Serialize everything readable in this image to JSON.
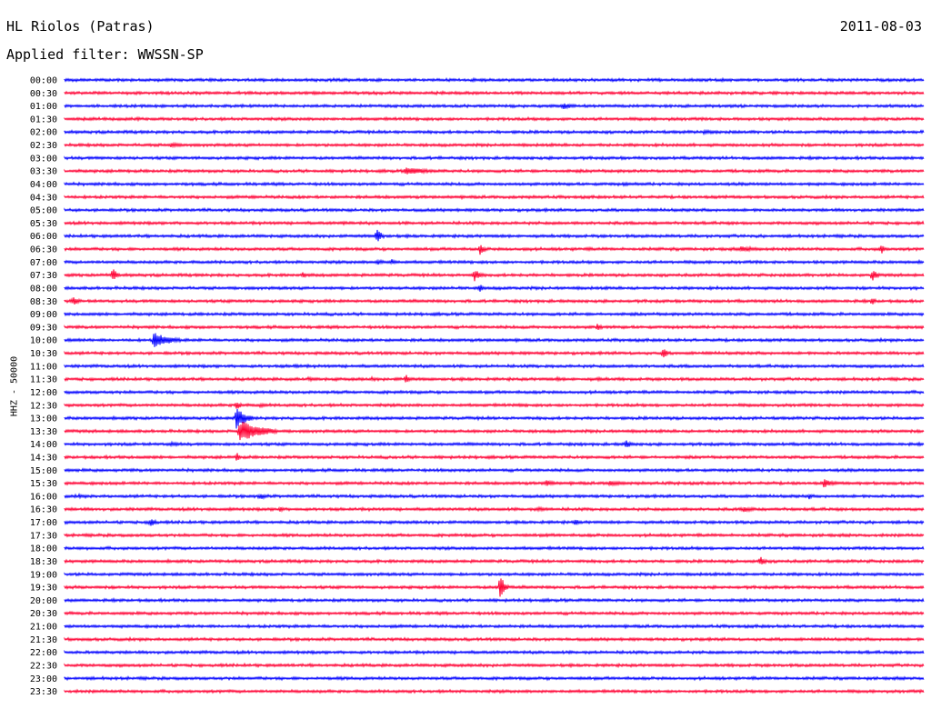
{
  "header": {
    "station": "HL Riolos (Patras)",
    "date": "2011-08-03",
    "filter": "Applied filter: WWSSN-SP"
  },
  "channel_label": "HHZ - 50000",
  "colors": {
    "even_trace": "#0000ff",
    "odd_trace": "#ff0033",
    "background": "#ffffff"
  },
  "chart_data": {
    "type": "line",
    "title": "HL Riolos (Patras)",
    "subtitle": "Applied filter: WWSSN-SP",
    "date": "2011-08-03",
    "ylabel": "HHZ - 50000",
    "rows": [
      "00:00",
      "00:30",
      "01:00",
      "01:30",
      "02:00",
      "02:30",
      "03:00",
      "03:30",
      "04:00",
      "04:30",
      "05:00",
      "05:30",
      "06:00",
      "06:30",
      "07:00",
      "07:30",
      "08:00",
      "08:30",
      "09:00",
      "09:30",
      "10:00",
      "10:30",
      "11:00",
      "11:30",
      "12:00",
      "12:30",
      "13:00",
      "13:30",
      "14:00",
      "14:30",
      "15:00",
      "15:30",
      "16:00",
      "16:30",
      "17:00",
      "17:30",
      "18:00",
      "18:30",
      "19:00",
      "19:30",
      "20:00",
      "20:30",
      "21:00",
      "21:30",
      "22:00",
      "22:30",
      "23:00",
      "23:30"
    ],
    "row_duration_minutes": 30,
    "grid": false,
    "events": [
      {
        "row": "00:30",
        "minute": 2.4,
        "amp": 0.2,
        "dur": 0.3
      },
      {
        "row": "00:30",
        "minute": 27.5,
        "amp": 0.2,
        "dur": 0.3
      },
      {
        "row": "01:00",
        "minute": 17.4,
        "amp": 0.9,
        "dur": 0.6
      },
      {
        "row": "01:30",
        "minute": 7.6,
        "amp": 0.25,
        "dur": 0.3
      },
      {
        "row": "01:30",
        "minute": 9.4,
        "amp": 0.25,
        "dur": 0.4
      },
      {
        "row": "01:30",
        "minute": 10.2,
        "amp": 0.25,
        "dur": 1.3
      },
      {
        "row": "01:30",
        "minute": 21.2,
        "amp": 0.35,
        "dur": 1.6
      },
      {
        "row": "02:00",
        "minute": 11.5,
        "amp": 0.4,
        "dur": 0.6
      },
      {
        "row": "02:00",
        "minute": 22.3,
        "amp": 0.5,
        "dur": 1.8
      },
      {
        "row": "02:30",
        "minute": 2.8,
        "amp": 0.3,
        "dur": 1.2
      },
      {
        "row": "02:30",
        "minute": 3.7,
        "amp": 0.55,
        "dur": 1.4
      },
      {
        "row": "03:30",
        "minute": 2.2,
        "amp": 0.3,
        "dur": 2.3
      },
      {
        "row": "03:30",
        "minute": 11.9,
        "amp": 1.0,
        "dur": 1.5
      },
      {
        "row": "04:00",
        "minute": 1.5,
        "amp": 0.35,
        "dur": 1.2
      },
      {
        "row": "04:00",
        "minute": 7.3,
        "amp": 0.4,
        "dur": 0.3
      },
      {
        "row": "04:00",
        "minute": 19.5,
        "amp": 0.45,
        "dur": 1.2
      },
      {
        "row": "04:00",
        "minute": 23.6,
        "amp": 0.35,
        "dur": 0.9
      },
      {
        "row": "04:00",
        "minute": 26.0,
        "amp": 0.35,
        "dur": 0.6
      },
      {
        "row": "04:30",
        "minute": 4.3,
        "amp": 0.3,
        "dur": 0.8
      },
      {
        "row": "04:30",
        "minute": 6.6,
        "amp": 0.45,
        "dur": 0.6
      },
      {
        "row": "04:30",
        "minute": 12.5,
        "amp": 0.3,
        "dur": 1.5
      },
      {
        "row": "04:30",
        "minute": 20.8,
        "amp": 0.3,
        "dur": 0.8
      },
      {
        "row": "05:30",
        "minute": 2.2,
        "amp": 0.3,
        "dur": 2.3
      },
      {
        "row": "05:30",
        "minute": 9.7,
        "amp": 0.55,
        "dur": 0.6
      },
      {
        "row": "05:30",
        "minute": 20.6,
        "amp": 0.35,
        "dur": 0.9
      },
      {
        "row": "06:00",
        "minute": 10.9,
        "amp": 2.0,
        "dur": 0.3
      },
      {
        "row": "06:00",
        "minute": 20.1,
        "amp": 0.35,
        "dur": 0.6
      },
      {
        "row": "06:30",
        "minute": 14.5,
        "amp": 1.5,
        "dur": 0.3
      },
      {
        "row": "06:30",
        "minute": 16.0,
        "amp": 0.4,
        "dur": 1.2
      },
      {
        "row": "06:30",
        "minute": 18.2,
        "amp": 0.45,
        "dur": 0.9
      },
      {
        "row": "06:30",
        "minute": 23.6,
        "amp": 0.7,
        "dur": 1.8
      },
      {
        "row": "06:30",
        "minute": 28.5,
        "amp": 1.5,
        "dur": 0.2
      },
      {
        "row": "07:00",
        "minute": 3.3,
        "amp": 0.3,
        "dur": 0.3
      },
      {
        "row": "07:00",
        "minute": 8.1,
        "amp": 0.4,
        "dur": 0.6
      },
      {
        "row": "07:00",
        "minute": 10.9,
        "amp": 0.7,
        "dur": 0.6
      },
      {
        "row": "07:00",
        "minute": 11.4,
        "amp": 0.9,
        "dur": 0.4
      },
      {
        "row": "07:30",
        "minute": 1.7,
        "amp": 2.0,
        "dur": 0.2
      },
      {
        "row": "07:30",
        "minute": 8.3,
        "amp": 0.8,
        "dur": 0.3
      },
      {
        "row": "07:30",
        "minute": 14.3,
        "amp": 1.6,
        "dur": 0.4
      },
      {
        "row": "07:30",
        "minute": 28.2,
        "amp": 1.6,
        "dur": 0.3
      },
      {
        "row": "08:00",
        "minute": 13.1,
        "amp": 0.35,
        "dur": 1.8
      },
      {
        "row": "08:00",
        "minute": 14.5,
        "amp": 1.2,
        "dur": 0.2
      },
      {
        "row": "08:30",
        "minute": 0.3,
        "amp": 1.1,
        "dur": 0.4
      },
      {
        "row": "08:30",
        "minute": 28.2,
        "amp": 1.2,
        "dur": 0.2
      },
      {
        "row": "09:00",
        "minute": 7.2,
        "amp": 0.3,
        "dur": 0.9
      },
      {
        "row": "09:00",
        "minute": 18.0,
        "amp": 0.3,
        "dur": 0.6
      },
      {
        "row": "09:00",
        "minute": 24.1,
        "amp": 0.3,
        "dur": 1.2
      },
      {
        "row": "09:30",
        "minute": 16.5,
        "amp": 0.3,
        "dur": 0.6
      },
      {
        "row": "09:30",
        "minute": 18.6,
        "amp": 1.1,
        "dur": 0.3
      },
      {
        "row": "09:30",
        "minute": 29.5,
        "amp": 0.35,
        "dur": 0.5
      },
      {
        "row": "10:00",
        "minute": 0.1,
        "amp": 0.4,
        "dur": 1.8
      },
      {
        "row": "10:00",
        "minute": 3.1,
        "amp": 2.2,
        "dur": 1.0
      },
      {
        "row": "10:30",
        "minute": 7.7,
        "amp": 0.3,
        "dur": 0.3
      },
      {
        "row": "10:30",
        "minute": 20.9,
        "amp": 1.8,
        "dur": 0.2
      },
      {
        "row": "11:00",
        "minute": 8.0,
        "amp": 0.45,
        "dur": 1.2
      },
      {
        "row": "11:00",
        "minute": 13.3,
        "amp": 0.3,
        "dur": 0.6
      },
      {
        "row": "11:30",
        "minute": 8.5,
        "amp": 0.5,
        "dur": 0.9
      },
      {
        "row": "11:30",
        "minute": 10.7,
        "amp": 0.6,
        "dur": 0.6
      },
      {
        "row": "11:30",
        "minute": 11.6,
        "amp": 0.4,
        "dur": 0.6
      },
      {
        "row": "11:30",
        "minute": 11.9,
        "amp": 1.3,
        "dur": 0.3
      },
      {
        "row": "11:30",
        "minute": 17.2,
        "amp": 0.5,
        "dur": 0.9
      },
      {
        "row": "11:30",
        "minute": 18.6,
        "amp": 0.5,
        "dur": 0.6
      },
      {
        "row": "12:00",
        "minute": 1.8,
        "amp": 0.3,
        "dur": 0.6
      },
      {
        "row": "12:00",
        "minute": 15.8,
        "amp": 0.3,
        "dur": 1.8
      },
      {
        "row": "12:30",
        "minute": 6.0,
        "amp": 1.2,
        "dur": 0.3
      },
      {
        "row": "12:30",
        "minute": 6.8,
        "amp": 0.6,
        "dur": 0.6
      },
      {
        "row": "12:30",
        "minute": 15.9,
        "amp": 0.35,
        "dur": 1.2
      },
      {
        "row": "13:00",
        "minute": 6.0,
        "amp": 2.8,
        "dur": 0.6
      },
      {
        "row": "13:30",
        "minute": 6.1,
        "amp": 3.0,
        "dur": 1.3
      },
      {
        "row": "14:00",
        "minute": 3.7,
        "amp": 0.6,
        "dur": 1.0
      },
      {
        "row": "14:00",
        "minute": 14.2,
        "amp": 0.35,
        "dur": 1.5
      },
      {
        "row": "14:00",
        "minute": 18.0,
        "amp": 0.35,
        "dur": 1.2
      },
      {
        "row": "14:00",
        "minute": 19.6,
        "amp": 1.3,
        "dur": 0.3
      },
      {
        "row": "14:00",
        "minute": 24.6,
        "amp": 0.3,
        "dur": 0.3
      },
      {
        "row": "14:30",
        "minute": 6.0,
        "amp": 1.4,
        "dur": 0.2
      },
      {
        "row": "15:30",
        "minute": 15.6,
        "amp": 0.35,
        "dur": 1.2
      },
      {
        "row": "15:30",
        "minute": 16.8,
        "amp": 0.9,
        "dur": 0.6
      },
      {
        "row": "15:30",
        "minute": 19.0,
        "amp": 0.7,
        "dur": 1.2
      },
      {
        "row": "15:30",
        "minute": 21.4,
        "amp": 0.5,
        "dur": 0.3
      },
      {
        "row": "15:30",
        "minute": 26.5,
        "amp": 1.1,
        "dur": 0.7
      },
      {
        "row": "16:00",
        "minute": 0.5,
        "amp": 0.5,
        "dur": 0.6
      },
      {
        "row": "16:00",
        "minute": 6.8,
        "amp": 1.0,
        "dur": 0.4
      },
      {
        "row": "16:00",
        "minute": 26.0,
        "amp": 0.8,
        "dur": 0.2
      },
      {
        "row": "16:30",
        "minute": 5.0,
        "amp": 0.4,
        "dur": 0.6
      },
      {
        "row": "16:30",
        "minute": 7.5,
        "amp": 0.8,
        "dur": 0.3
      },
      {
        "row": "16:30",
        "minute": 16.5,
        "amp": 0.55,
        "dur": 1.1
      },
      {
        "row": "16:30",
        "minute": 23.7,
        "amp": 0.7,
        "dur": 1.0
      },
      {
        "row": "17:00",
        "minute": 3.0,
        "amp": 1.2,
        "dur": 0.3
      },
      {
        "row": "17:00",
        "minute": 5.8,
        "amp": 0.4,
        "dur": 0.6
      },
      {
        "row": "17:00",
        "minute": 17.8,
        "amp": 1.0,
        "dur": 0.3
      },
      {
        "row": "17:30",
        "minute": 13.5,
        "amp": 0.3,
        "dur": 1.8
      },
      {
        "row": "17:30",
        "minute": 16.8,
        "amp": 0.4,
        "dur": 0.9
      },
      {
        "row": "18:00",
        "minute": 0.6,
        "amp": 0.35,
        "dur": 0.5
      },
      {
        "row": "18:30",
        "minute": 24.3,
        "amp": 1.3,
        "dur": 0.3
      },
      {
        "row": "19:30",
        "minute": 15.2,
        "amp": 3.5,
        "dur": 0.3
      },
      {
        "row": "22:30",
        "minute": 25.2,
        "amp": 0.25,
        "dur": 0.4
      }
    ]
  }
}
